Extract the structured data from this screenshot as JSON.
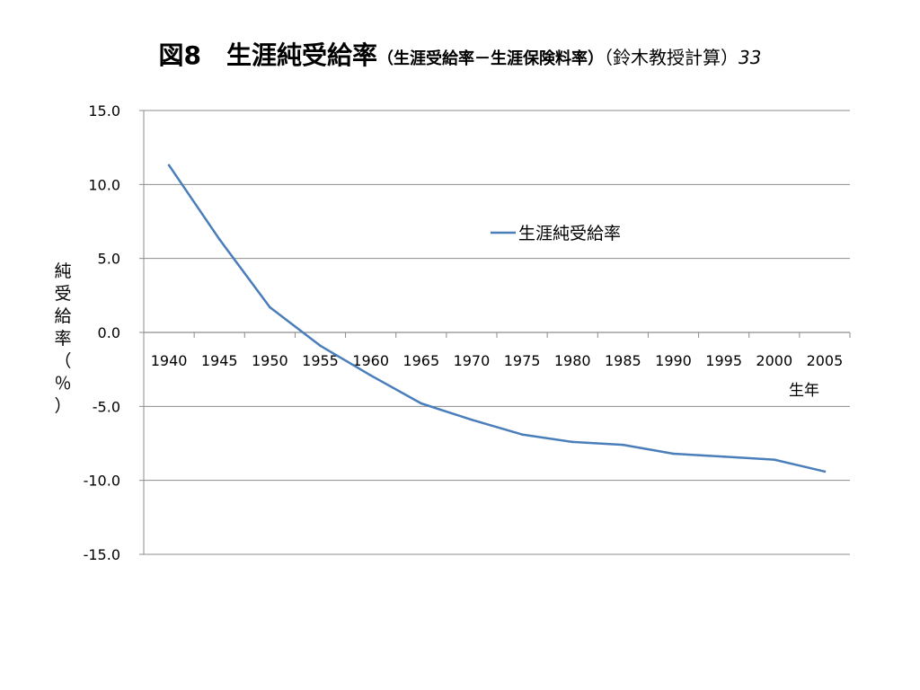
{
  "slide": {
    "title_main": "図8　生涯純受給率",
    "title_sub": "（生涯受給率－生涯保険料率）",
    "title_note": "（鈴木教授計算）",
    "page_number": "33"
  },
  "chart_data": {
    "type": "line",
    "title": "",
    "xlabel": "生年",
    "ylabel": "純受給率（％）",
    "categories": [
      "1940",
      "1945",
      "1950",
      "1955",
      "1960",
      "1965",
      "1970",
      "1975",
      "1980",
      "1985",
      "1990",
      "1995",
      "2000",
      "2005"
    ],
    "ylim": [
      -15,
      15
    ],
    "yticks": [
      15,
      10,
      5,
      0,
      -5,
      -10,
      -15
    ],
    "ytick_labels": [
      "15.0",
      "10.0",
      "5.0",
      "0.0",
      "-5.0",
      "-10.0",
      "-15.0"
    ],
    "grid": true,
    "legend_position": "upper-right-inside",
    "series": [
      {
        "name": "生涯純受給率",
        "color": "#4a7ebb",
        "values": [
          11.3,
          6.3,
          1.7,
          -0.9,
          -2.9,
          -4.8,
          -5.9,
          -6.9,
          -7.4,
          -7.6,
          -8.2,
          -8.4,
          -8.6,
          -9.4
        ]
      }
    ]
  }
}
